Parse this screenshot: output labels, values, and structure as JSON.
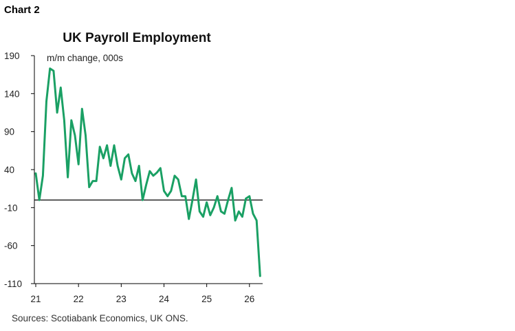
{
  "header": {
    "chart_number": "Chart 2"
  },
  "footer": {
    "source": "Sources: Scotiabank Economics, UK ONS."
  },
  "chart_data": {
    "type": "line",
    "title": "UK Payroll Employment",
    "unit_label": "m/m change, 000s",
    "xlabel": "",
    "ylabel": "",
    "x_tick_labels": [
      "21",
      "22",
      "23",
      "24",
      "25",
      "26"
    ],
    "y_ticks": [
      190,
      140,
      90,
      40,
      -10,
      -60,
      -110
    ],
    "ylim": [
      -110,
      190
    ],
    "x_start": "2021-01",
    "color": "#1aa064",
    "grid": false,
    "series": [
      {
        "values": [
          35,
          0,
          32,
          130,
          173,
          170,
          115,
          148,
          105,
          30,
          105,
          85,
          47,
          120,
          85,
          17,
          25,
          25,
          70,
          55,
          72,
          45,
          72,
          45,
          27,
          55,
          60,
          35,
          25,
          45,
          0,
          20,
          38,
          32,
          36,
          42,
          12,
          5,
          12,
          32,
          27,
          5,
          5,
          -25,
          0,
          27,
          -15,
          -22,
          -3,
          -20,
          -10,
          5,
          -15,
          -18,
          0,
          16,
          -27,
          -15,
          -22,
          2,
          5,
          -18,
          -27,
          -100
        ]
      }
    ]
  }
}
